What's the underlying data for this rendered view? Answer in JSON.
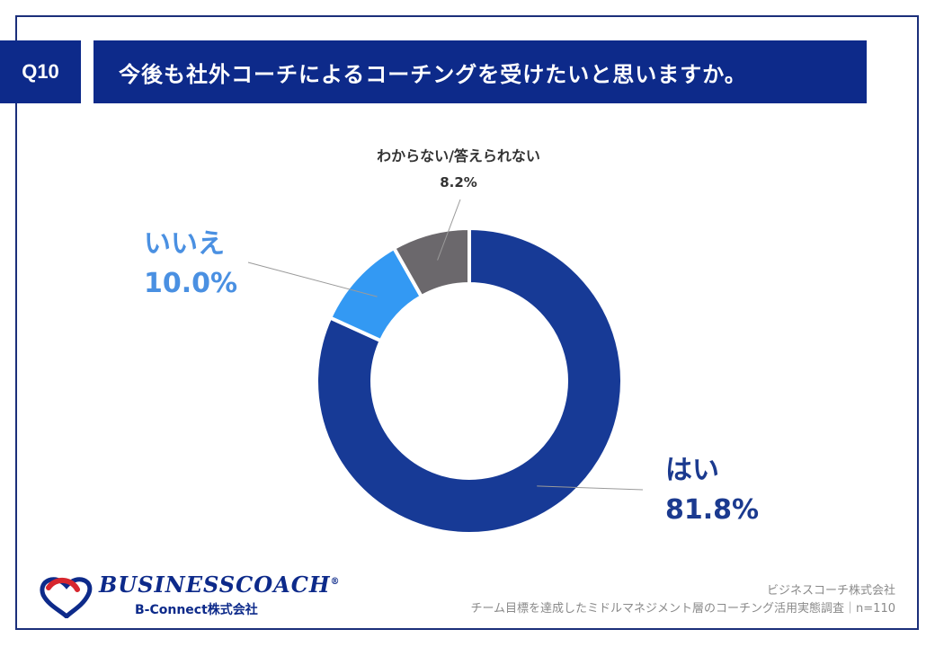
{
  "header": {
    "question_id": "Q10",
    "question": "今後も社外コーチによるコーチングを受けたいと思いますか。"
  },
  "chart_data": {
    "type": "pie",
    "categories": [
      "はい",
      "いいえ",
      "わからない/答えられない"
    ],
    "values": [
      81.8,
      10.0,
      8.2
    ],
    "value_labels": [
      "81.8%",
      "10.0%",
      "8.2%"
    ],
    "colors": [
      "#173a96",
      "#3399f3",
      "#6b686c"
    ],
    "label_colors": [
      "#1b3a8f",
      "#4a90e2",
      "#333333"
    ],
    "donut": true,
    "unit": "%"
  },
  "logo": {
    "brand": "BUSINESSCOACH",
    "registered": "®",
    "company": "B-Connect株式会社"
  },
  "footer": {
    "line1": "ビジネスコーチ株式会社",
    "line2": "チーム目標を達成したミドルマネジメント層のコーチング活用実態調査｜n=110"
  }
}
